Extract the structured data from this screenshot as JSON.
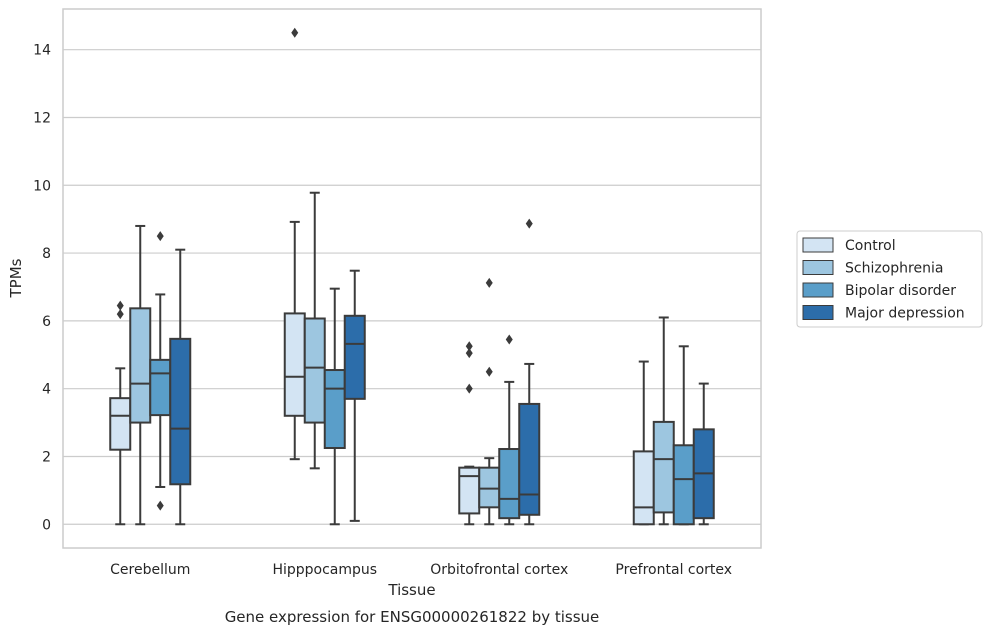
{
  "chart_data": {
    "type": "box",
    "title": "",
    "caption": "Gene expression for ENSG00000261822 by tissue",
    "xlabel": "Tissue",
    "ylabel": "TPMs",
    "ylim": [
      -0.7,
      15.2
    ],
    "yticks": [
      0,
      2,
      4,
      6,
      8,
      10,
      12,
      14
    ],
    "grid": "horizontal",
    "legend_position": "right",
    "categories": [
      "Cerebellum",
      "Hipppocampus",
      "Orbitofrontal cortex",
      "Prefrontal cortex"
    ],
    "series": [
      {
        "name": "Control",
        "color": "#d3e4f3",
        "boxes": [
          {
            "whisker_low": 0,
            "q1": 2.2,
            "median": 3.2,
            "q3": 3.72,
            "whisker_high": 4.6,
            "outliers": [
              6.2,
              6.45
            ]
          },
          {
            "whisker_low": 1.92,
            "q1": 3.2,
            "median": 4.35,
            "q3": 6.22,
            "whisker_high": 8.92,
            "outliers": [
              14.5
            ]
          },
          {
            "whisker_low": 0,
            "q1": 0.32,
            "median": 1.42,
            "q3": 1.67,
            "whisker_high": 1.7,
            "outliers": [
              4.0,
              5.05,
              5.25
            ]
          },
          {
            "whisker_low": 0,
            "q1": 0,
            "median": 0.5,
            "q3": 2.15,
            "whisker_high": 4.8,
            "outliers": []
          }
        ]
      },
      {
        "name": "Schizophrenia",
        "color": "#9dc6e0",
        "boxes": [
          {
            "whisker_low": 0,
            "q1": 3.0,
            "median": 4.15,
            "q3": 6.37,
            "whisker_high": 8.8,
            "outliers": []
          },
          {
            "whisker_low": 1.65,
            "q1": 3.0,
            "median": 4.62,
            "q3": 6.07,
            "whisker_high": 9.78,
            "outliers": []
          },
          {
            "whisker_low": 0,
            "q1": 0.5,
            "median": 1.05,
            "q3": 1.67,
            "whisker_high": 1.95,
            "outliers": [
              4.5,
              7.12
            ]
          },
          {
            "whisker_low": 0,
            "q1": 0.35,
            "median": 1.92,
            "q3": 3.02,
            "whisker_high": 6.1,
            "outliers": []
          }
        ]
      },
      {
        "name": "Bipolar disorder",
        "color": "#5a9ec9",
        "boxes": [
          {
            "whisker_low": 1.1,
            "q1": 3.22,
            "median": 4.45,
            "q3": 4.85,
            "whisker_high": 6.78,
            "outliers": [
              0.55,
              8.5
            ]
          },
          {
            "whisker_low": 0,
            "q1": 2.25,
            "median": 4.0,
            "q3": 4.55,
            "whisker_high": 6.95,
            "outliers": []
          },
          {
            "whisker_low": 0,
            "q1": 0.18,
            "median": 0.75,
            "q3": 2.22,
            "whisker_high": 4.2,
            "outliers": [
              5.45
            ]
          },
          {
            "whisker_low": 0,
            "q1": 0,
            "median": 1.33,
            "q3": 2.33,
            "whisker_high": 5.25,
            "outliers": []
          }
        ]
      },
      {
        "name": "Major depression",
        "color": "#2c6daa",
        "boxes": [
          {
            "whisker_low": 0,
            "q1": 1.18,
            "median": 2.82,
            "q3": 5.47,
            "whisker_high": 8.1,
            "outliers": []
          },
          {
            "whisker_low": 0.1,
            "q1": 3.7,
            "median": 5.32,
            "q3": 6.15,
            "whisker_high": 7.48,
            "outliers": []
          },
          {
            "whisker_low": 0,
            "q1": 0.28,
            "median": 0.88,
            "q3": 3.55,
            "whisker_high": 4.73,
            "outliers": [
              8.87
            ]
          },
          {
            "whisker_low": 0,
            "q1": 0.18,
            "median": 1.5,
            "q3": 2.8,
            "whisker_high": 4.15,
            "outliers": []
          }
        ]
      }
    ]
  }
}
